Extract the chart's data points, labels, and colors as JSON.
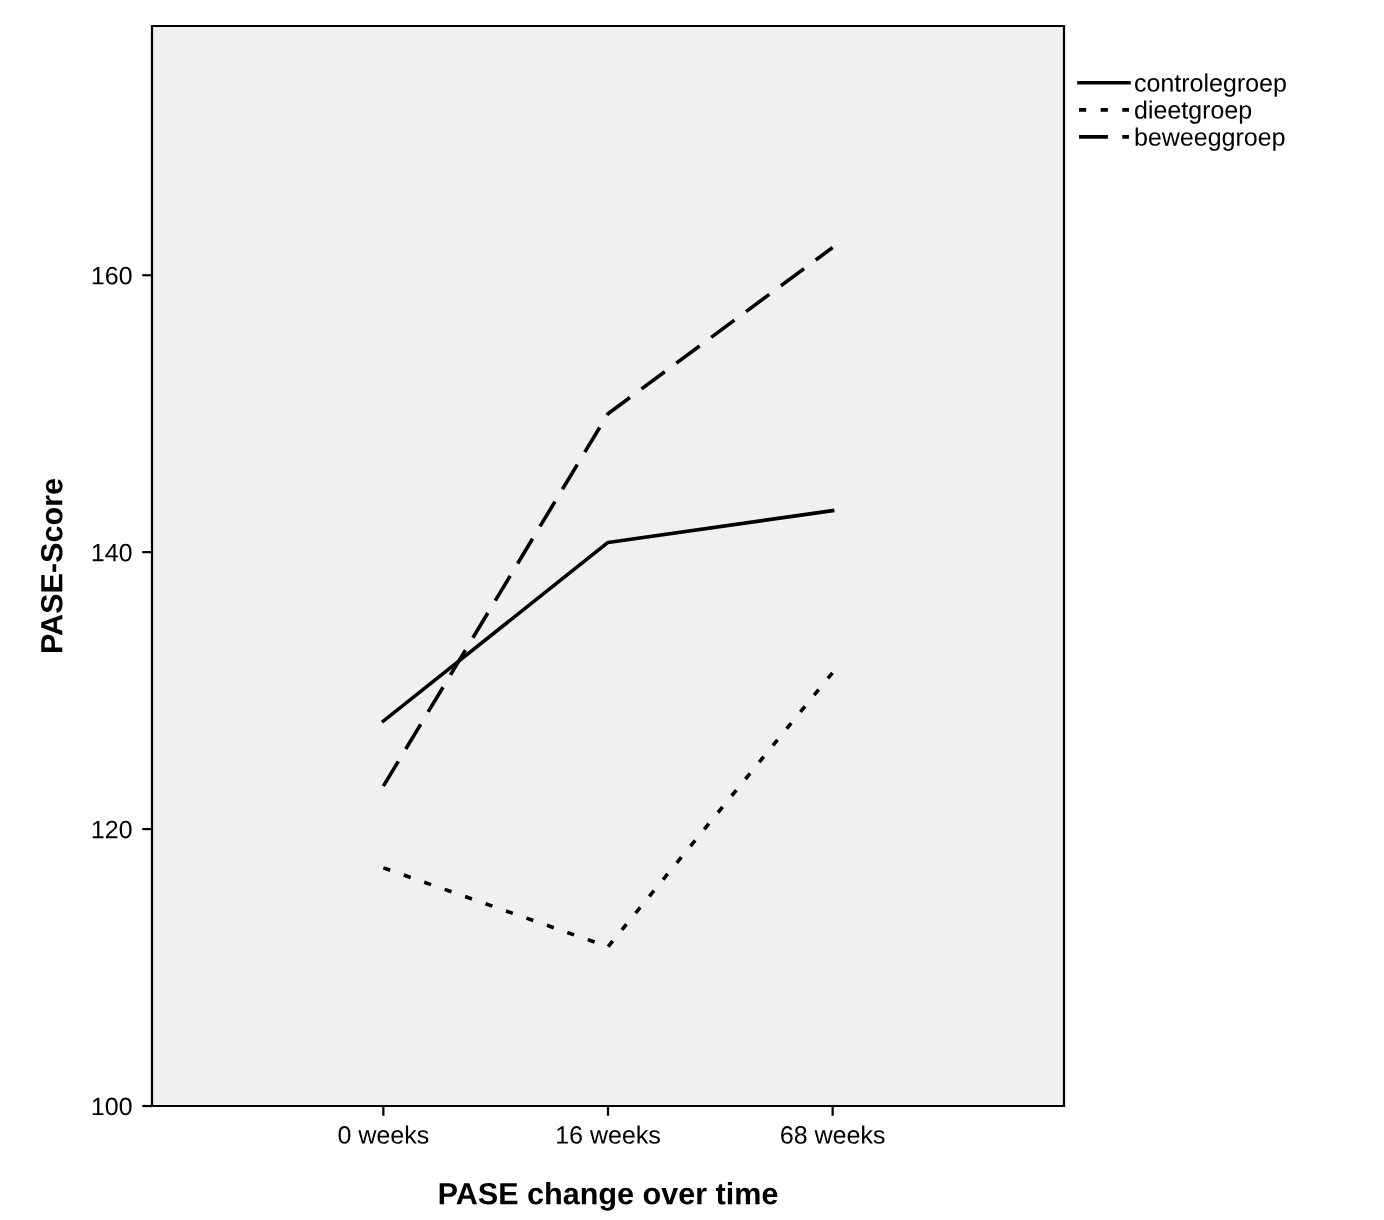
{
  "chart_data": {
    "type": "line",
    "xlabel": "PASE change over time",
    "ylabel": "PASE-Score",
    "categories": [
      "0 weeks",
      "16 weeks",
      "68 weeks"
    ],
    "series": [
      {
        "name": "controlegroep",
        "color": "#000000",
        "line_style": "solid",
        "values": [
          127.8,
          140.7,
          143.0
        ]
      },
      {
        "name": "dieetgroep",
        "color": "#000000",
        "line_style": "dotted",
        "values": [
          117.2,
          111.5,
          131.3
        ]
      },
      {
        "name": "beweeggroep",
        "color": "#000000",
        "line_style": "dashed",
        "values": [
          123.1,
          150.0,
          162.0
        ]
      }
    ],
    "ylim": [
      100,
      178
    ],
    "yticks": [
      100,
      120,
      140,
      160
    ],
    "grid": false,
    "legend": "top right",
    "marker": "none"
  }
}
